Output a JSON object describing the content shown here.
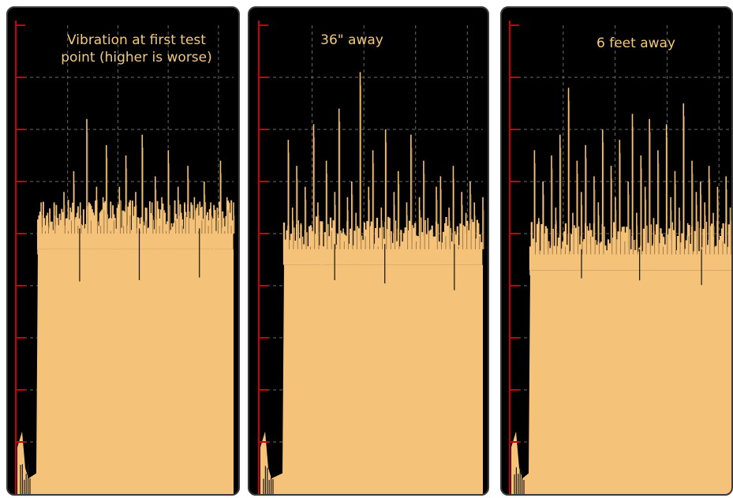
{
  "colors": {
    "background": "#000000",
    "fill": "#f5c27a",
    "spike": "#8a6a3c",
    "grid": "#6b6b6b",
    "axis": "#cc0000",
    "text": "#f2c97e"
  },
  "chart_data": [
    {
      "type": "area",
      "title": "Vibration at first test\npoint (higher is worse)",
      "xlabel": "",
      "ylabel": "",
      "grid": true,
      "ylim": [
        0,
        9
      ],
      "baseline": 4.7,
      "peak_max": 7.3,
      "dip_min": 3.9,
      "series": [
        {
          "values": [
            4.6,
            5.6,
            5.3,
            5.4,
            5.0,
            5.6,
            5.2,
            5.1,
            5.8,
            5.3,
            5.5,
            6.2,
            5.4,
            5.6,
            5.2,
            7.2,
            5.5,
            5.1,
            5.9,
            5.4,
            5.7,
            6.7,
            5.3,
            5.5,
            5.0,
            5.9,
            5.4,
            6.5,
            5.6,
            5.2,
            5.8,
            5.3,
            6.9,
            5.5,
            5.1,
            5.6,
            6.1,
            5.4,
            5.7,
            5.3,
            6.6,
            5.2,
            5.5,
            5.9,
            5.4,
            5.6,
            6.3,
            5.1,
            5.7,
            5.3,
            5.5,
            6.0,
            5.4,
            5.6,
            4.1,
            5.5,
            6.4,
            5.3,
            5.7,
            5.4,
            5.6
          ]
        }
      ]
    },
    {
      "type": "area",
      "title": "36\" away",
      "xlabel": "",
      "ylabel": "",
      "grid": true,
      "ylim": [
        0,
        9
      ],
      "baseline": 4.4,
      "peak_max": 8.2,
      "dip_min": 3.9,
      "series": [
        {
          "values": [
            4.6,
            6.8,
            5.5,
            6.3,
            5.2,
            5.9,
            5.0,
            7.1,
            5.6,
            4.0,
            6.4,
            5.3,
            5.8,
            7.4,
            5.1,
            5.7,
            6.0,
            5.4,
            8.1,
            5.2,
            5.9,
            6.6,
            5.0,
            5.5,
            7.0,
            5.3,
            5.8,
            6.2,
            4.8,
            5.6,
            6.9,
            5.1,
            5.7,
            6.4,
            5.3,
            4.6,
            5.9,
            6.1,
            5.2,
            5.5,
            6.3,
            5.0,
            5.8,
            5.4,
            6.0,
            5.6,
            5.2,
            5.7
          ]
        }
      ]
    },
    {
      "type": "area",
      "title": "6 feet away",
      "xlabel": "",
      "ylabel": "",
      "grid": true,
      "ylim": [
        0,
        9
      ],
      "baseline": 4.3,
      "peak_max": 7.9,
      "dip_min": 4.0,
      "series": [
        {
          "values": [
            4.2,
            6.6,
            5.3,
            6.0,
            5.1,
            6.5,
            5.5,
            6.9,
            5.0,
            7.8,
            5.4,
            6.4,
            5.8,
            6.7,
            5.2,
            6.1,
            5.6,
            7.0,
            4.4,
            6.3,
            5.7,
            6.8,
            5.1,
            6.0,
            7.3,
            5.4,
            6.5,
            5.9,
            7.2,
            5.3,
            6.6,
            5.0,
            7.1,
            5.7,
            6.2,
            5.5,
            7.5,
            5.2,
            6.4,
            5.8,
            6.0,
            5.6,
            6.3,
            5.4,
            5.9,
            5.1,
            6.1,
            5.5,
            5.7
          ]
        }
      ]
    }
  ]
}
